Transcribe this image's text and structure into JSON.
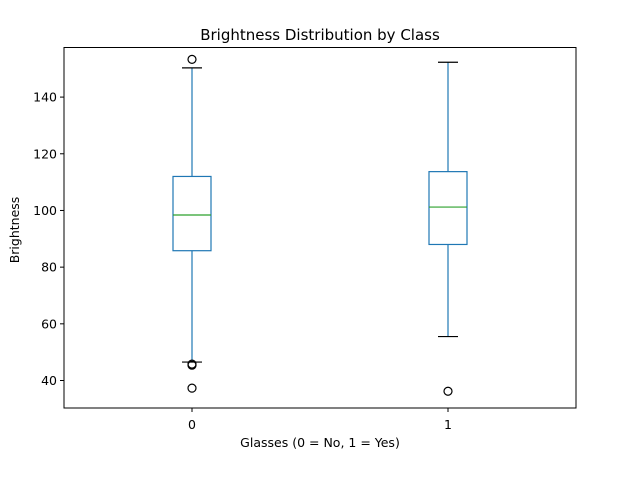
{
  "chart_data": {
    "type": "boxplot",
    "title": "Brightness Distribution by Class",
    "xlabel": "Glasses (0 = No, 1 = Yes)",
    "ylabel": "Brightness",
    "categories": [
      "0",
      "1"
    ],
    "ylim": [
      30.3,
      157.5
    ],
    "yticks": [
      40,
      60,
      80,
      100,
      120,
      140
    ],
    "grid": false,
    "legend": "none",
    "boxes": [
      {
        "category": "0",
        "whisker_low": 46.5,
        "q1": 85.8,
        "median": 98.4,
        "q3": 112.0,
        "whisker_high": 150.3,
        "outliers": [
          153.3,
          45.8,
          45.4,
          37.3
        ]
      },
      {
        "category": "1",
        "whisker_low": 55.5,
        "q1": 88.0,
        "median": 101.2,
        "q3": 113.7,
        "whisker_high": 152.3,
        "outliers": [
          36.2
        ]
      }
    ],
    "colors": {
      "box": "#1f77b4",
      "median": "#2ca02c",
      "whisker_cap": "#000000",
      "outlier": "#000000",
      "axes": "#000000"
    }
  }
}
